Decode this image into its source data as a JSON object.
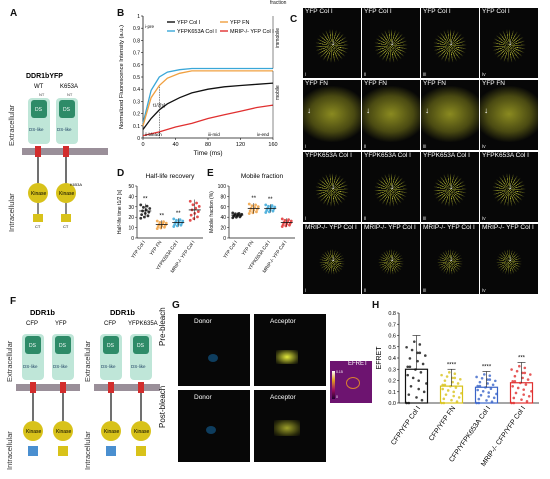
{
  "panels": {
    "A": "A",
    "B": "B",
    "C": "C",
    "D": "D",
    "E": "E",
    "F": "F",
    "G": "G",
    "H": "H"
  },
  "panel_a": {
    "title": "DDR1bYFP",
    "wt": "WT",
    "k653a": "K653A",
    "nt": "NT",
    "ds": "DS",
    "ds_like": "DS-like",
    "extracellular": "Extracellular",
    "intracellular": "Intracellular",
    "kinase": "Kinase",
    "k653a_marker": "K653A",
    "ct": "CT",
    "colors": {
      "ds": "#2e8b68",
      "ds_like": "#bfe6d8",
      "kinase": "#d8c21a",
      "membrane": "#9a8f99",
      "tm": "#d22c2c"
    }
  },
  "panel_b": {
    "pre": "i-pre",
    "bleach": "ii-bleach",
    "mid": "iii-mid",
    "end": "iv-end",
    "t_half": "t1/2[s]",
    "fraction": "fraction",
    "immobile": "immobile",
    "mobile": "mobile"
  },
  "panel_c": {
    "rows": [
      {
        "label": "YFP Col I",
        "arrow": true
      },
      {
        "label": "YFP FN",
        "arrow": true
      },
      {
        "label": "YFPK653A Col I",
        "arrow": true
      },
      {
        "label": "MRIP-/- YFP Col I",
        "arrow": true
      }
    ],
    "roman": [
      "i",
      "ii",
      "iii",
      "iv"
    ],
    "colors": {
      "fibrillar": "#e4ea3c",
      "diffuse": "#8a8a20"
    }
  },
  "panel_d": {
    "title": "Half-life recovery",
    "sig": [
      "**",
      "**",
      "**",
      ""
    ],
    "categories": [
      "YFP Col I",
      "YFP FN",
      "YFPK653A Col I",
      "MRIP-/- YFP Col I"
    ]
  },
  "panel_e": {
    "title": "Mobile fraction",
    "sig": [
      "",
      "**",
      "**",
      ""
    ],
    "categories": [
      "YFP Col I",
      "YFP FN",
      "YFPK653A Col I",
      "MRIP-/- YFP Col I"
    ]
  },
  "panel_f": {
    "left_title": "DDR1b",
    "right_title": "DDR1b",
    "cfp": "CFP",
    "yfp": "YFP",
    "yfpk": "YFPK635A",
    "nt": "NT",
    "ds": "DS",
    "ds_like": "DS-like",
    "extracellular": "Extracellular",
    "intracellular": "Intracellular",
    "kinase": "Kinase",
    "ct": "CT"
  },
  "panel_g": {
    "donor": "Donor",
    "acceptor": "Acceptor",
    "pre": "Pre-bleach",
    "post": "Post-bleach",
    "efret": "EFRET",
    "scale_top": "0.15",
    "scale_bot": "0"
  },
  "panel_h": {
    "sig": [
      "",
      "****",
      "****",
      "***"
    ]
  },
  "chart_data": [
    {
      "type": "line",
      "title": "",
      "xlabel": "Time (ms)",
      "ylabel": "Normalized Fluorescence Intensity (a.u.)",
      "xlim": [
        0,
        160
      ],
      "ylim": [
        0,
        1
      ],
      "xticks": [
        0,
        40,
        80,
        120,
        160
      ],
      "yticks": [
        0,
        0.1,
        0.2,
        0.3,
        0.4,
        0.5,
        0.6,
        0.7,
        0.8,
        0.9,
        1
      ],
      "legend_placement": "top",
      "series": [
        {
          "name": "YFP Col I",
          "color": "#111111",
          "x": [
            0,
            10,
            20,
            30,
            45,
            60,
            80,
            100,
            120,
            140,
            160
          ],
          "y": [
            0.07,
            0.16,
            0.23,
            0.28,
            0.33,
            0.37,
            0.4,
            0.42,
            0.43,
            0.44,
            0.45
          ]
        },
        {
          "name": "YFPK653A Col I",
          "color": "#3aa7d8",
          "x": [
            0,
            10,
            20,
            30,
            45,
            60,
            80,
            100,
            120,
            140,
            160
          ],
          "y": [
            0.12,
            0.39,
            0.5,
            0.54,
            0.56,
            0.57,
            0.57,
            0.57,
            0.57,
            0.57,
            0.57
          ]
        },
        {
          "name": "YFP FN",
          "color": "#f0a040",
          "x": [
            0,
            10,
            20,
            30,
            45,
            60,
            80,
            100,
            120,
            140,
            160
          ],
          "y": [
            0.1,
            0.33,
            0.43,
            0.49,
            0.53,
            0.55,
            0.55,
            0.55,
            0.55,
            0.55,
            0.55
          ]
        },
        {
          "name": "MRIP-/- YFP Col I",
          "color": "#e03030",
          "x": [
            0,
            20,
            40,
            60,
            80,
            100,
            120,
            140,
            160
          ],
          "y": [
            0.02,
            0.05,
            0.09,
            0.12,
            0.16,
            0.19,
            0.22,
            0.25,
            0.27
          ]
        }
      ]
    },
    {
      "type": "scatter",
      "title": "Half-life recovery",
      "xlabel": "",
      "ylabel": "Half-life time t1/2 [s]",
      "ylim": [
        0,
        50
      ],
      "yticks": [
        0,
        10,
        20,
        30,
        40,
        50
      ],
      "categories": [
        "YFP Col I",
        "YFP FN",
        "YFPK653A Col I",
        "MRIP-/- YFP Col I"
      ],
      "series": [
        {
          "name": "YFP Col I",
          "color": "#111111",
          "mean": 26,
          "sd": 7
        },
        {
          "name": "YFP FN",
          "color": "#f0a040",
          "mean": 13,
          "sd": 4
        },
        {
          "name": "YFPK653A Col I",
          "color": "#3aa7d8",
          "mean": 15,
          "sd": 4
        },
        {
          "name": "MRIP-/- YFP Col I",
          "color": "#e03030",
          "mean": 27,
          "sd": 10
        }
      ]
    },
    {
      "type": "scatter",
      "title": "Mobile fraction",
      "xlabel": "",
      "ylabel": "Mobile fraction (%)",
      "ylim": [
        0,
        100
      ],
      "yticks": [
        0,
        20,
        40,
        60,
        80,
        100
      ],
      "categories": [
        "YFP Col I",
        "YFP FN",
        "YFPK653A Col I",
        "MRIP-/- YFP Col I"
      ],
      "series": [
        {
          "name": "YFP Col I",
          "color": "#111111",
          "mean": 44,
          "sd": 5
        },
        {
          "name": "YFP FN",
          "color": "#f0a040",
          "mean": 57,
          "sd": 10
        },
        {
          "name": "YFPK653A Col I",
          "color": "#3aa7d8",
          "mean": 57,
          "sd": 8
        },
        {
          "name": "MRIP-/- YFP Col I",
          "color": "#e03030",
          "mean": 30,
          "sd": 8
        }
      ]
    },
    {
      "type": "bar",
      "title": "",
      "xlabel": "",
      "ylabel": "EFRET",
      "ylim": [
        0,
        0.8
      ],
      "yticks": [
        0,
        0.1,
        0.2,
        0.3,
        0.4,
        0.5,
        0.6,
        0.7,
        0.8
      ],
      "categories": [
        "CFP/YFP Col I",
        "CFP/YFP FN",
        "CFP/YFPK653A Col I",
        "MRIP-/- CFP/YFP Col I"
      ],
      "series": [
        {
          "name": "",
          "values": [
            0.3,
            0.15,
            0.14,
            0.18
          ]
        }
      ],
      "colors": [
        "#111111",
        "#d8c21a",
        "#3a64c8",
        "#e03030"
      ]
    }
  ]
}
